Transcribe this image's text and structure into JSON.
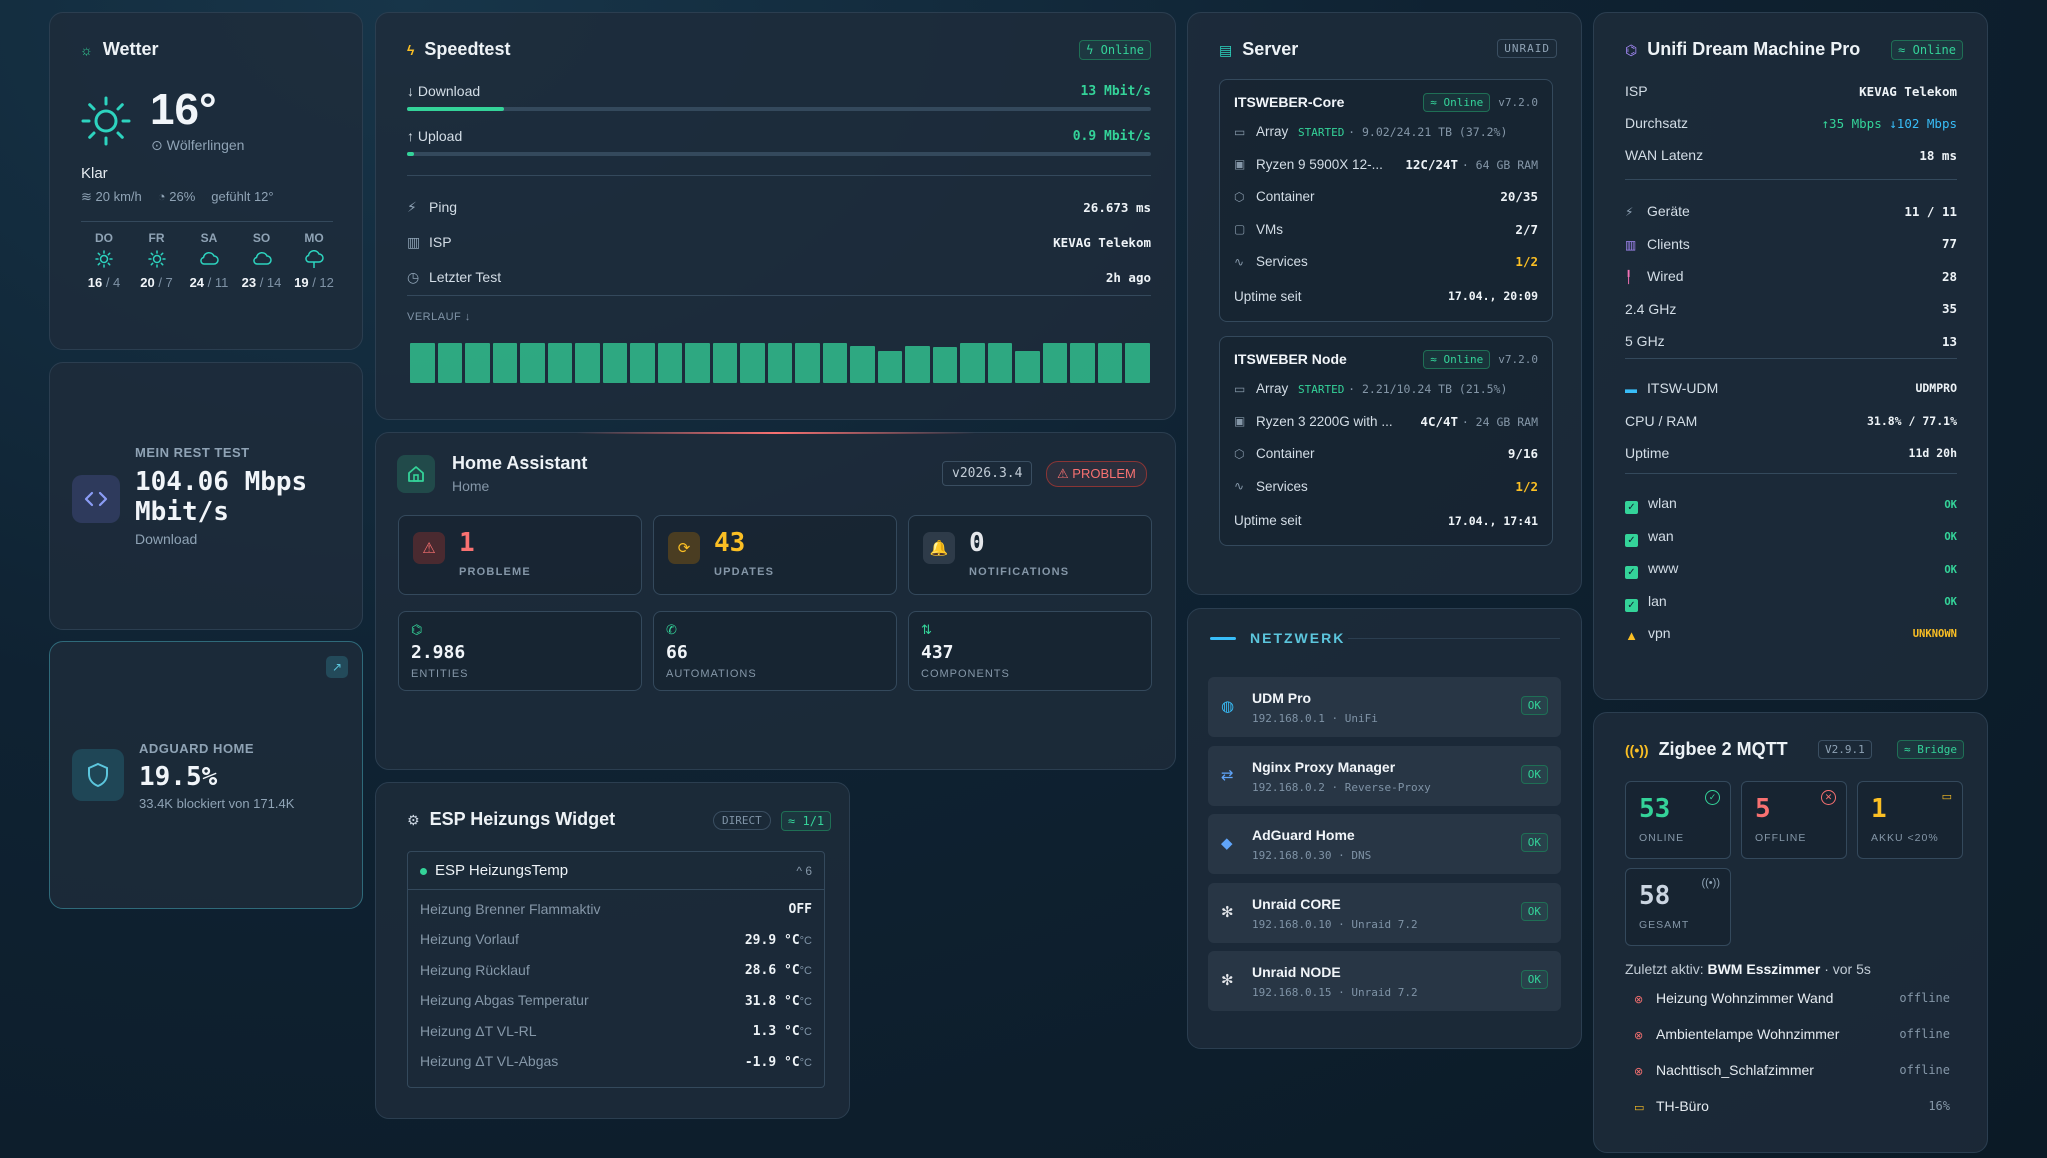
{
  "weather": {
    "title": "Wetter",
    "temp": "16°",
    "location": "Wölferlingen",
    "condition": "Klar",
    "wind": "20 km/h",
    "humidity": "26%",
    "feels": "gefühlt 12°",
    "forecast": [
      {
        "day": "DO",
        "icon": "sun",
        "hi": "16",
        "lo": "4"
      },
      {
        "day": "FR",
        "icon": "sun",
        "hi": "20",
        "lo": "7"
      },
      {
        "day": "SA",
        "icon": "cloud",
        "hi": "24",
        "lo": "11"
      },
      {
        "day": "SO",
        "icon": "cloud",
        "hi": "23",
        "lo": "14"
      },
      {
        "day": "MO",
        "icon": "cloud-rain",
        "hi": "19",
        "lo": "12"
      }
    ]
  },
  "resttest": {
    "label": "MEIN REST TEST",
    "value": "104.06 Mbps",
    "unit": "Mbit/s",
    "sub": "Download"
  },
  "adguard": {
    "label": "ADGUARD HOME",
    "value": "19.5%",
    "sub": "33.4K blockiert von 171.4K"
  },
  "speedtest": {
    "title": "Speedtest",
    "status": "Online",
    "download_label": "Download",
    "download_value": "13 Mbit/s",
    "download_fraction": 0.13,
    "upload_label": "Upload",
    "upload_value": "0.9 Mbit/s",
    "upload_fraction": 0.01,
    "rows": [
      {
        "label": "Ping",
        "value": "26.673 ms",
        "icon": "ping-icon"
      },
      {
        "label": "ISP",
        "value": "KEVAG Telekom",
        "icon": "building-icon"
      },
      {
        "label": "Letzter Test",
        "value": "2h ago",
        "icon": "clock-icon"
      }
    ],
    "history_label": "VERLAUF ↓",
    "history": [
      1,
      1,
      1,
      1,
      1,
      1,
      1,
      1,
      1,
      1,
      1,
      1,
      1,
      1,
      1,
      1,
      0.93,
      0.8,
      0.93,
      0.9,
      1,
      1,
      0.8,
      1,
      1,
      1,
      1
    ],
    "accent": "#34d399"
  },
  "homeassistant": {
    "title": "Home Assistant",
    "subtitle": "Home",
    "version": "v2026.3.4",
    "status": "PROBLEM",
    "stats": [
      {
        "value": "1",
        "label": "PROBLEME",
        "color": "#f87171"
      },
      {
        "value": "43",
        "label": "UPDATES",
        "color": "#fbbf24"
      },
      {
        "value": "0",
        "label": "NOTIFICATIONS",
        "color": "#e5e7eb"
      }
    ],
    "counts": [
      {
        "value": "2.986",
        "label": "ENTITIES"
      },
      {
        "value": "66",
        "label": "AUTOMATIONS"
      },
      {
        "value": "437",
        "label": "COMPONENTS"
      }
    ]
  },
  "esp": {
    "title": "ESP Heizungs Widget",
    "badge1": "DIRECT",
    "badge2": "1/1",
    "group": "ESP HeizungsTemp",
    "group_count": "6",
    "rows": [
      {
        "label": "Heizung Brenner Flammaktiv",
        "value": "OFF",
        "unit": ""
      },
      {
        "label": "Heizung Vorlauf",
        "value": "29.9 °C",
        "unit": "°C"
      },
      {
        "label": "Heizung Rücklauf",
        "value": "28.6 °C",
        "unit": "°C"
      },
      {
        "label": "Heizung Abgas Temperatur",
        "value": "31.8 °C",
        "unit": "°C"
      },
      {
        "label": "Heizung ΔT VL-RL",
        "value": "1.3 °C",
        "unit": "°C"
      },
      {
        "label": "Heizung ΔT VL-Abgas",
        "value": "-1.9 °C",
        "unit": "°C"
      }
    ]
  },
  "server": {
    "title": "Server",
    "badge": "UNRAID",
    "nodes": [
      {
        "name": "ITSWEBER-Core",
        "status": "Online",
        "version": "v7.2.0",
        "array_state": "STARTED",
        "array_detail": "· 9.02/24.21 TB (37.2%)",
        "cpu": "Ryzen 9 5900X 12-...",
        "cores": "12C/24T",
        "ram": "· 64 GB RAM",
        "containers": "20/35",
        "vms": "2/7",
        "services": "1/2",
        "uptime": "17.04., 20:09"
      },
      {
        "name": "ITSWEBER Node",
        "status": "Online",
        "version": "v7.2.0",
        "array_state": "STARTED",
        "array_detail": "· 2.21/10.24 TB (21.5%)",
        "cpu": "Ryzen 3 2200G with ...",
        "cores": "4C/4T",
        "ram": "· 24 GB RAM",
        "containers": "9/16",
        "services": "1/2",
        "uptime": "17.04., 17:41"
      }
    ],
    "labels": {
      "array": "Array",
      "container": "Container",
      "vms": "VMs",
      "services": "Services",
      "uptime": "Uptime seit"
    }
  },
  "network": {
    "title": "NETZWERK",
    "items": [
      {
        "name": "UDM Pro",
        "sub": "192.168.0.1 · UniFi",
        "status": "OK",
        "icon": "globe-icon"
      },
      {
        "name": "Nginx Proxy Manager",
        "sub": "192.168.0.2 · Reverse-Proxy",
        "status": "OK",
        "icon": "proxy-icon"
      },
      {
        "name": "AdGuard Home",
        "sub": "192.168.0.30 · DNS",
        "status": "OK",
        "icon": "shield-icon"
      },
      {
        "name": "Unraid CORE",
        "sub": "192.168.0.10 · Unraid 7.2",
        "status": "OK",
        "icon": "gear-icon"
      },
      {
        "name": "Unraid NODE",
        "sub": "192.168.0.15 · Unraid 7.2",
        "status": "OK",
        "icon": "gear-icon"
      }
    ]
  },
  "unifi": {
    "title": "Unifi Dream Machine Pro",
    "status": "Online",
    "isp_label": "ISP",
    "isp": "KEVAG Telekom",
    "tp_label": "Durchsatz",
    "tp_up": "↑35 Mbps",
    "tp_down": "↓102 Mbps",
    "wan_label": "WAN Latenz",
    "wan": "18 ms",
    "rows1": [
      {
        "label": "Geräte",
        "value": "11 / 11"
      },
      {
        "label": "Clients",
        "value": "77"
      },
      {
        "label": "Wired",
        "value": "28"
      },
      {
        "label": "2.4 GHz",
        "value": "35"
      },
      {
        "label": "5 GHz",
        "value": "13"
      }
    ],
    "rows2": [
      {
        "label": "ITSW-UDM",
        "value": "UDMPRO"
      },
      {
        "label": "CPU / RAM",
        "value": "31.8% / 77.1%"
      },
      {
        "label": "Uptime",
        "value": "11d 20h"
      }
    ],
    "checks": [
      {
        "label": "wlan",
        "value": "OK"
      },
      {
        "label": "wan",
        "value": "OK"
      },
      {
        "label": "www",
        "value": "OK"
      },
      {
        "label": "lan",
        "value": "OK"
      },
      {
        "label": "vpn",
        "value": "UNKNOWN"
      }
    ]
  },
  "zigbee": {
    "title": "Zigbee 2 MQTT",
    "version": "V2.9.1",
    "bridge": "Bridge",
    "stats": [
      {
        "value": "53",
        "label": "ONLINE",
        "color": "#34d399"
      },
      {
        "value": "5",
        "label": "OFFLINE",
        "color": "#f87171"
      },
      {
        "value": "1",
        "label": "AKKU <20%",
        "color": "#fbbf24"
      },
      {
        "value": "58",
        "label": "GESAMT",
        "color": "#cbd5e1"
      }
    ],
    "last_prefix": "Zuletzt aktiv:",
    "last_device": "BWM Esszimmer",
    "last_suffix": "· vor 5s",
    "devices": [
      {
        "name": "Heizung Wohnzimmer Wand",
        "state": "offline"
      },
      {
        "name": "Ambientelampe Wohnzimmer",
        "state": "offline"
      },
      {
        "name": "Nachttisch_Schlafzimmer",
        "state": "offline"
      },
      {
        "name": "TH-Büro",
        "state": "16%"
      }
    ]
  }
}
